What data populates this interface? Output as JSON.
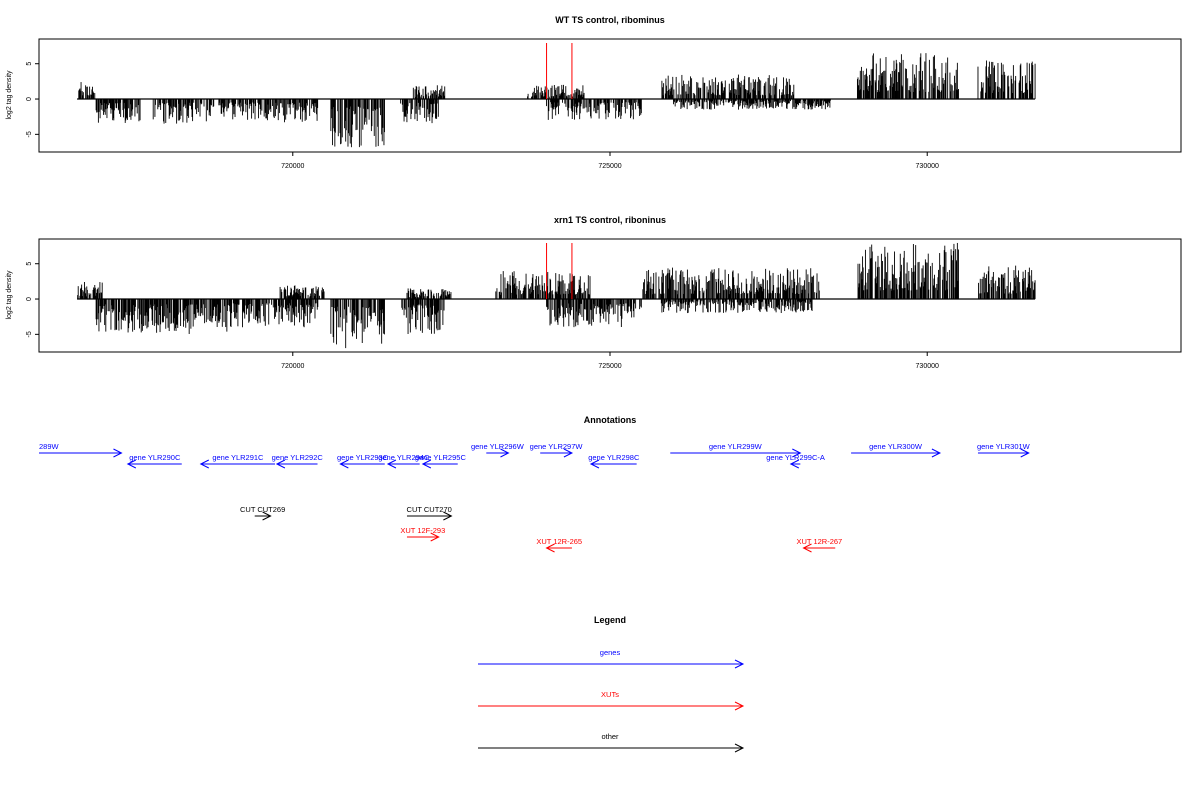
{
  "chart_data": [
    {
      "type": "bar",
      "title": "WT TS control, ribominus",
      "ylabel": "log2 tag density",
      "xlabel": "",
      "xlim": [
        716000,
        734000
      ],
      "ylim": [
        -7.5,
        8.5
      ],
      "yticks": [
        -5,
        0,
        5
      ],
      "ytick_labels": [
        "-5",
        "0",
        "5"
      ],
      "xticks": [
        720000,
        725000,
        730000
      ],
      "xtick_labels": [
        "720000",
        "725000",
        "730000"
      ],
      "baseline": [
        716600,
        731700
      ],
      "highlight_lines": {
        "color": "#ff0000",
        "x": [
          724000,
          724400
        ]
      },
      "segments": [
        {
          "from": 716600,
          "to": 716900,
          "sign": 1,
          "max": 2.5
        },
        {
          "from": 716900,
          "to": 717600,
          "sign": -1,
          "max": 3.5
        },
        {
          "from": 717800,
          "to": 719000,
          "sign": -1,
          "max": 3.5
        },
        {
          "from": 719000,
          "to": 719600,
          "sign": -1,
          "max": 3.0
        },
        {
          "from": 719600,
          "to": 720400,
          "sign": -1,
          "max": 3.5
        },
        {
          "from": 720600,
          "to": 721450,
          "sign": -1,
          "max": 7.0
        },
        {
          "from": 721700,
          "to": 722300,
          "sign": -1,
          "max": 3.5
        },
        {
          "from": 721900,
          "to": 722400,
          "sign": 1,
          "max": 2.0
        },
        {
          "from": 723700,
          "to": 724600,
          "sign": 1,
          "max": 2.0
        },
        {
          "from": 724000,
          "to": 725500,
          "sign": -1,
          "max": 3.0
        },
        {
          "from": 725800,
          "to": 727900,
          "sign": 1,
          "max": 3.5
        },
        {
          "from": 726000,
          "to": 728500,
          "sign": -1,
          "max": 1.5
        },
        {
          "from": 728900,
          "to": 730500,
          "sign": 1,
          "max": 6.5
        },
        {
          "from": 730800,
          "to": 731700,
          "sign": 1,
          "max": 5.5
        }
      ]
    },
    {
      "type": "bar",
      "title": "xrn1 TS control, riboninus",
      "ylabel": "log2 tag density",
      "xlabel": "",
      "xlim": [
        716000,
        734000
      ],
      "ylim": [
        -7.5,
        8.5
      ],
      "yticks": [
        -5,
        0,
        5
      ],
      "ytick_labels": [
        "-5",
        "0",
        "5"
      ],
      "xticks": [
        720000,
        725000,
        730000
      ],
      "xtick_labels": [
        "720000",
        "725000",
        "730000"
      ],
      "baseline": [
        716600,
        731700
      ],
      "highlight_lines": {
        "color": "#ff0000",
        "x": [
          724000,
          724400
        ]
      },
      "segments": [
        {
          "from": 716600,
          "to": 717000,
          "sign": 1,
          "max": 2.5
        },
        {
          "from": 716900,
          "to": 719000,
          "sign": -1,
          "max": 5.0
        },
        {
          "from": 719000,
          "to": 720400,
          "sign": -1,
          "max": 4.0
        },
        {
          "from": 719800,
          "to": 720500,
          "sign": 1,
          "max": 2.0
        },
        {
          "from": 720600,
          "to": 721450,
          "sign": -1,
          "max": 7.0
        },
        {
          "from": 721700,
          "to": 722400,
          "sign": -1,
          "max": 5.0
        },
        {
          "from": 721800,
          "to": 722500,
          "sign": 1,
          "max": 1.5
        },
        {
          "from": 723200,
          "to": 724700,
          "sign": 1,
          "max": 4.0
        },
        {
          "from": 724000,
          "to": 725500,
          "sign": -1,
          "max": 4.0
        },
        {
          "from": 725500,
          "to": 728300,
          "sign": 1,
          "max": 4.5
        },
        {
          "from": 725800,
          "to": 728200,
          "sign": -1,
          "max": 2.0
        },
        {
          "from": 728900,
          "to": 730500,
          "sign": 1,
          "max": 8.0
        },
        {
          "from": 730800,
          "to": 731700,
          "sign": 1,
          "max": 5.0
        }
      ]
    }
  ],
  "annotations": {
    "title": "Annotations",
    "features": [
      {
        "label": "289W",
        "kind": "gene",
        "start": 716000,
        "end": 717300,
        "row": 0,
        "dir": 1,
        "color": "#0000ff"
      },
      {
        "label": "gene YLR290C",
        "kind": "gene",
        "start": 717400,
        "end": 718250,
        "row": 1,
        "dir": -1,
        "color": "#0000ff"
      },
      {
        "label": "gene YLR291C",
        "kind": "gene",
        "start": 718550,
        "end": 719720,
        "row": 1,
        "dir": -1,
        "color": "#0000ff"
      },
      {
        "label": "gene YLR292C",
        "kind": "gene",
        "start": 719750,
        "end": 720390,
        "row": 1,
        "dir": -1,
        "color": "#0000ff"
      },
      {
        "label": "gene YLR293C",
        "kind": "gene",
        "start": 720750,
        "end": 721450,
        "row": 1,
        "dir": -1,
        "color": "#0000ff"
      },
      {
        "label": "gene YLR294C",
        "kind": "gene",
        "start": 721500,
        "end": 722000,
        "row": 1,
        "dir": -1,
        "color": "#0000ff"
      },
      {
        "label": "gene YLR295C",
        "kind": "gene",
        "start": 722050,
        "end": 722600,
        "row": 1,
        "dir": -1,
        "color": "#0000ff"
      },
      {
        "label": "gene YLR296W",
        "kind": "gene",
        "start": 723050,
        "end": 723400,
        "row": 0,
        "dir": 1,
        "color": "#0000ff"
      },
      {
        "label": "gene YLR297W",
        "kind": "gene",
        "start": 723900,
        "end": 724400,
        "row": 0,
        "dir": 1,
        "color": "#0000ff"
      },
      {
        "label": "gene YLR298C",
        "kind": "gene",
        "start": 724700,
        "end": 725420,
        "row": 1,
        "dir": -1,
        "color": "#0000ff"
      },
      {
        "label": "gene YLR299W",
        "kind": "gene",
        "start": 725950,
        "end": 728000,
        "row": 0,
        "dir": 1,
        "color": "#0000ff"
      },
      {
        "label": "gene YLR299C-A",
        "kind": "gene",
        "start": 727850,
        "end": 728000,
        "row": 1,
        "dir": -1,
        "color": "#0000ff"
      },
      {
        "label": "gene YLR300W",
        "kind": "gene",
        "start": 728800,
        "end": 730200,
        "row": 0,
        "dir": 1,
        "color": "#0000ff"
      },
      {
        "label": "gene YLR301W",
        "kind": "gene",
        "start": 730800,
        "end": 731600,
        "row": 0,
        "dir": 1,
        "color": "#0000ff"
      },
      {
        "label": "CUT CUT269",
        "kind": "other",
        "start": 719400,
        "end": 719650,
        "row": 3,
        "dir": 1,
        "color": "#000000"
      },
      {
        "label": "CUT CUT270",
        "kind": "other",
        "start": 721800,
        "end": 722500,
        "row": 3,
        "dir": 1,
        "color": "#000000"
      },
      {
        "label": "XUT 12F-293",
        "kind": "XUT",
        "start": 721800,
        "end": 722300,
        "row": 4,
        "dir": 1,
        "color": "#ff0000"
      },
      {
        "label": "XUT 12R-265",
        "kind": "XUT",
        "start": 724000,
        "end": 724400,
        "row": 5,
        "dir": -1,
        "color": "#ff0000"
      },
      {
        "label": "XUT 12R-267",
        "kind": "XUT",
        "start": 728050,
        "end": 728550,
        "row": 5,
        "dir": -1,
        "color": "#ff0000"
      }
    ]
  },
  "legend": {
    "title": "Legend",
    "items": [
      {
        "label": "genes",
        "color": "#0000ff"
      },
      {
        "label": "XUTs",
        "color": "#ff0000"
      },
      {
        "label": "other",
        "color": "#000000"
      }
    ]
  }
}
